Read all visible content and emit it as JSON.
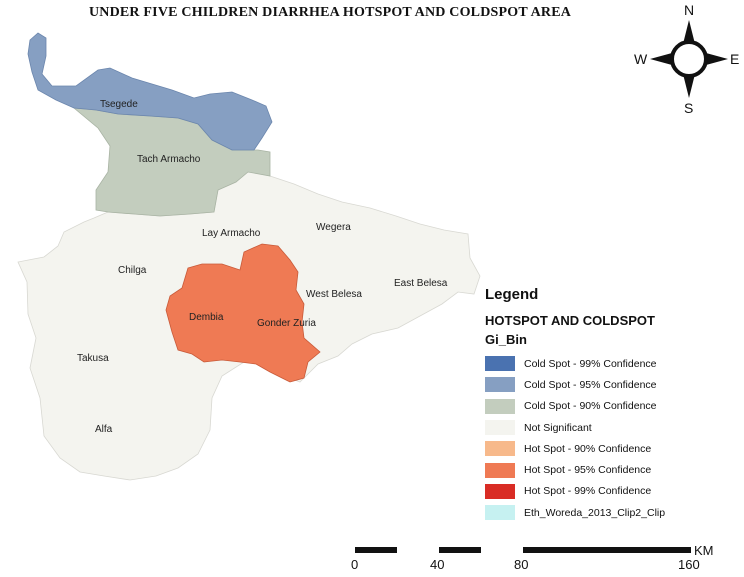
{
  "title": "UNDER FIVE CHILDREN DIARRHEA HOTSPOT AND COLDSPOT AREA",
  "colors": {
    "cold_99": "#4a72b0",
    "cold_95": "#869fc2",
    "cold_90": "#c3cdbe",
    "not_significant": "#f4f4ef",
    "hot_90": "#f7b98b",
    "hot_95": "#ef7a54",
    "hot_99": "#d92c25",
    "woreda_clip": "#c6f1f1"
  },
  "woredas": [
    {
      "name": "Tsegede",
      "class": "cold_95"
    },
    {
      "name": "Tach Armacho",
      "class": "cold_90"
    },
    {
      "name": "Lay Armacho",
      "class": "not_significant"
    },
    {
      "name": "Wegera",
      "class": "not_significant"
    },
    {
      "name": "Chilga",
      "class": "not_significant"
    },
    {
      "name": "East Belesa",
      "class": "not_significant"
    },
    {
      "name": "West Belesa",
      "class": "not_significant"
    },
    {
      "name": "Dembia",
      "class": "hot_95"
    },
    {
      "name": "Gonder Zuria",
      "class": "hot_95"
    },
    {
      "name": "Takusa",
      "class": "not_significant"
    },
    {
      "name": "Alfa",
      "class": "not_significant"
    }
  ],
  "compass": {
    "north": "N",
    "south": "S",
    "east": "E",
    "west": "W"
  },
  "legend": {
    "title": "Legend",
    "subtitle": "HOTSPOT AND COLDSPOT",
    "field": "Gi_Bin",
    "items": [
      {
        "label": "Cold Spot - 99% Confidence",
        "color": "#4a72b0"
      },
      {
        "label": "Cold Spot - 95% Confidence",
        "color": "#869fc2"
      },
      {
        "label": "Cold Spot - 90% Confidence",
        "color": "#c3cdbe"
      },
      {
        "label": "Not Significant",
        "color": "#f4f4ef"
      },
      {
        "label": "Hot Spot - 90% Confidence",
        "color": "#f7b98b"
      },
      {
        "label": "Hot Spot - 95% Confidence",
        "color": "#ef7a54"
      },
      {
        "label": "Hot Spot - 99% Confidence",
        "color": "#d92c25"
      },
      {
        "label": "Eth_Woreda_2013_Clip2_Clip",
        "color": "#c6f1f1"
      }
    ]
  },
  "scale_bar": {
    "unit": "KM",
    "ticks": [
      "0",
      "40",
      "80",
      "160"
    ]
  }
}
